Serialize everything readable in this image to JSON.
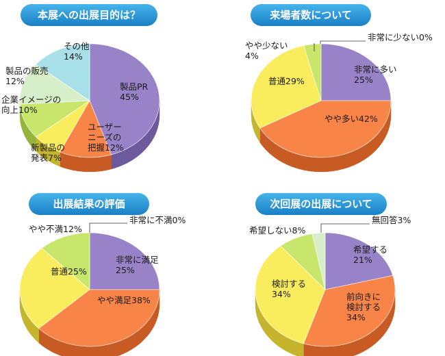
{
  "chart_data": [
    {
      "type": "pie",
      "title": "本展への出展目的は？",
      "slices": [
        {
          "label": [
            "製品PR",
            "45%"
          ],
          "value": 45,
          "color": "#9883c8",
          "side": "#6d5a9c"
        },
        {
          "label": [
            "ユーザー",
            "ニーズの",
            "把握12%"
          ],
          "value": 12,
          "color": "#f98447",
          "side": "#c85a24"
        },
        {
          "label": [
            "新製品の",
            "発表7%"
          ],
          "value": 7,
          "color": "#f9ed5e",
          "side": "#c4b52c"
        },
        {
          "label": [
            "企業イメージの",
            "向上10%"
          ],
          "value": 10,
          "color": "#c8e66b",
          "side": "#94b43c"
        },
        {
          "label": [
            "製品の販売",
            "12%"
          ],
          "value": 12,
          "color": "#d6efc8",
          "side": "#a4c090"
        },
        {
          "label": [
            "その他",
            "14%"
          ],
          "value": 14,
          "color": "#a8e0ea",
          "side": "#74b0bc"
        }
      ]
    },
    {
      "type": "pie",
      "title": "来場者数について",
      "slices": [
        {
          "label": [
            "非常に多い",
            "25%"
          ],
          "value": 25,
          "color": "#9883c8",
          "side": "#6d5a9c"
        },
        {
          "label": [
            "やや多い42%"
          ],
          "value": 42,
          "color": "#f98447",
          "side": "#c85a24"
        },
        {
          "label": [
            "普通29%"
          ],
          "value": 29,
          "color": "#f9ed5e",
          "side": "#c4b52c"
        },
        {
          "label": [
            "やや少ない",
            "4%"
          ],
          "value": 4,
          "color": "#c8e66b",
          "side": "#94b43c"
        },
        {
          "label": [
            "非常に少ない0%"
          ],
          "value": 0,
          "color": "#d6efc8",
          "side": "#a4c090"
        }
      ]
    },
    {
      "type": "pie",
      "title": "出展結果の評価",
      "slices": [
        {
          "label": [
            "非常に満足",
            "25%"
          ],
          "value": 25,
          "color": "#9883c8",
          "side": "#6d5a9c"
        },
        {
          "label": [
            "やや満足38%"
          ],
          "value": 38,
          "color": "#f98447",
          "side": "#c85a24"
        },
        {
          "label": [
            "普通25%"
          ],
          "value": 25,
          "color": "#f9ed5e",
          "side": "#c4b52c"
        },
        {
          "label": [
            "やや不満12%"
          ],
          "value": 12,
          "color": "#c8e66b",
          "side": "#94b43c"
        },
        {
          "label": [
            "非常に不満0%"
          ],
          "value": 0,
          "color": "#d6efc8",
          "side": "#a4c090"
        }
      ]
    },
    {
      "type": "pie",
      "title": "次回展の出展について",
      "slices": [
        {
          "label": [
            "希望する",
            "21%"
          ],
          "value": 21,
          "color": "#9883c8",
          "side": "#6d5a9c"
        },
        {
          "label": [
            "前向きに",
            "検討する",
            "34%"
          ],
          "value": 34,
          "color": "#f98447",
          "side": "#c85a24"
        },
        {
          "label": [
            "検討する",
            "34%"
          ],
          "value": 34,
          "color": "#f9ed5e",
          "side": "#c4b52c"
        },
        {
          "label": [
            "希望しない8%"
          ],
          "value": 8,
          "color": "#c8e66b",
          "side": "#94b43c"
        },
        {
          "label": [
            "無回答3%"
          ],
          "value": 3,
          "color": "#d6efc8",
          "side": "#a4c090"
        }
      ]
    }
  ]
}
